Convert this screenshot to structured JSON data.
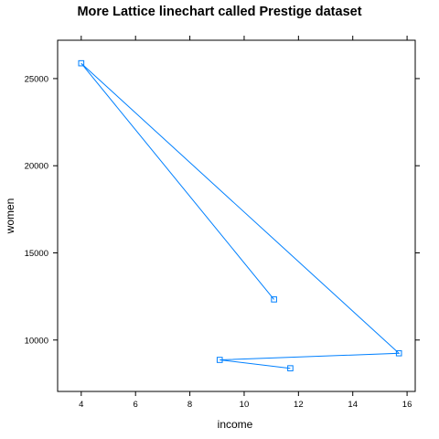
{
  "chart_data": {
    "type": "line",
    "title": "More Lattice linechart called Prestige dataset",
    "xlabel": "income",
    "ylabel": "women",
    "xlim": [
      3.13,
      16.3
    ],
    "ylim": [
      7050,
      27200
    ],
    "xticks": [
      4,
      6,
      8,
      10,
      12,
      14,
      16
    ],
    "yticks": [
      10000,
      15000,
      20000,
      25000
    ],
    "grid": false,
    "marker": "square",
    "series": [
      {
        "color": "#0080ff",
        "x": [
          11.1,
          4.0,
          15.7,
          9.1,
          11.7
        ],
        "y": [
          12330,
          25880,
          9240,
          8860,
          8380
        ]
      }
    ]
  }
}
